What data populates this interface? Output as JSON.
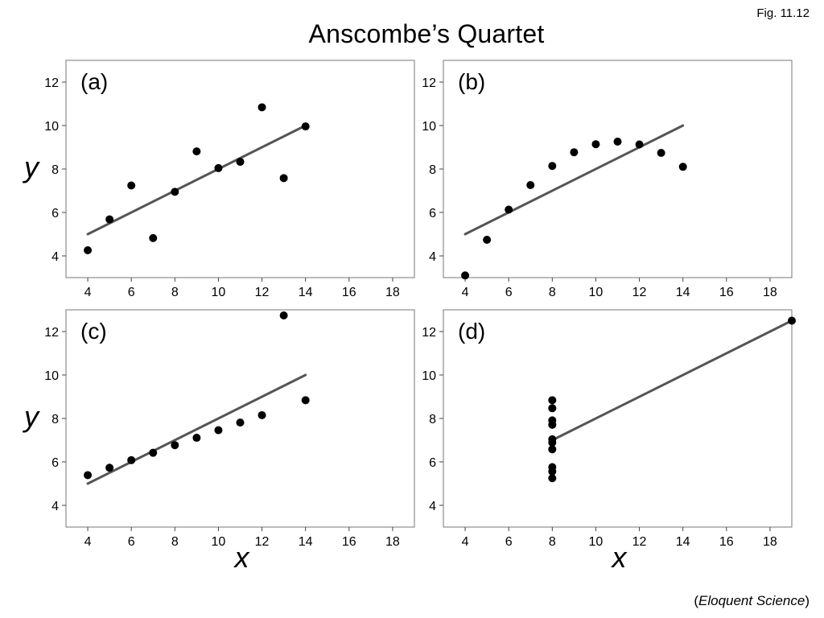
{
  "header": {
    "fig_label": "Fig. 11.12",
    "title": "Anscombe’s Quartet"
  },
  "footer": {
    "credit_open": "(",
    "credit_source": "Eloquent Science",
    "credit_close": ")"
  },
  "colors": {
    "points": "#000000",
    "fit_line": "#555555",
    "frame": "#777777"
  },
  "chart_data": [
    {
      "type": "scatter",
      "panel": "(a)",
      "title": "",
      "xlabel": "",
      "ylabel": "y",
      "xlim": [
        3,
        19
      ],
      "ylim": [
        3,
        13
      ],
      "xticks": [
        4,
        6,
        8,
        10,
        12,
        14,
        16,
        18
      ],
      "yticks": [
        4,
        6,
        8,
        10,
        12
      ],
      "grid": false,
      "points": {
        "x": [
          10,
          8,
          13,
          9,
          11,
          14,
          6,
          4,
          12,
          7,
          5
        ],
        "y": [
          8.04,
          6.95,
          7.58,
          8.81,
          8.33,
          9.96,
          7.24,
          4.26,
          10.84,
          4.82,
          5.68
        ]
      },
      "fit_line": {
        "x": [
          4,
          14
        ],
        "y": [
          5.0,
          10.0
        ]
      }
    },
    {
      "type": "scatter",
      "panel": "(b)",
      "title": "",
      "xlabel": "",
      "ylabel": "",
      "xlim": [
        3,
        19
      ],
      "ylim": [
        3,
        13
      ],
      "xticks": [
        4,
        6,
        8,
        10,
        12,
        14,
        16,
        18
      ],
      "yticks": [
        4,
        6,
        8,
        10,
        12
      ],
      "grid": false,
      "points": {
        "x": [
          10,
          8,
          13,
          9,
          11,
          14,
          6,
          4,
          12,
          7,
          5
        ],
        "y": [
          9.14,
          8.14,
          8.74,
          8.77,
          9.26,
          8.1,
          6.13,
          3.1,
          9.13,
          7.26,
          4.74
        ]
      },
      "fit_line": {
        "x": [
          4,
          14
        ],
        "y": [
          5.0,
          10.0
        ]
      }
    },
    {
      "type": "scatter",
      "panel": "(c)",
      "title": "",
      "xlabel": "x",
      "ylabel": "y",
      "xlim": [
        3,
        19
      ],
      "ylim": [
        3,
        13
      ],
      "xticks": [
        4,
        6,
        8,
        10,
        12,
        14,
        16,
        18
      ],
      "yticks": [
        4,
        6,
        8,
        10,
        12
      ],
      "grid": false,
      "points": {
        "x": [
          10,
          8,
          13,
          9,
          11,
          14,
          6,
          4,
          12,
          7,
          5
        ],
        "y": [
          7.46,
          6.77,
          12.74,
          7.11,
          7.81,
          8.84,
          6.08,
          5.39,
          8.15,
          6.42,
          5.73
        ]
      },
      "fit_line": {
        "x": [
          4,
          14
        ],
        "y": [
          5.0,
          10.0
        ]
      }
    },
    {
      "type": "scatter",
      "panel": "(d)",
      "title": "",
      "xlabel": "x",
      "ylabel": "",
      "xlim": [
        3,
        19
      ],
      "ylim": [
        3,
        13
      ],
      "xticks": [
        4,
        6,
        8,
        10,
        12,
        14,
        16,
        18
      ],
      "yticks": [
        4,
        6,
        8,
        10,
        12
      ],
      "grid": false,
      "points": {
        "x": [
          8,
          8,
          8,
          8,
          8,
          8,
          8,
          19,
          8,
          8,
          8
        ],
        "y": [
          6.58,
          5.76,
          7.71,
          8.84,
          8.47,
          7.04,
          5.25,
          12.5,
          5.56,
          7.91,
          6.89
        ]
      },
      "fit_line": {
        "x": [
          8,
          19
        ],
        "y": [
          7.0,
          12.5
        ]
      }
    }
  ]
}
